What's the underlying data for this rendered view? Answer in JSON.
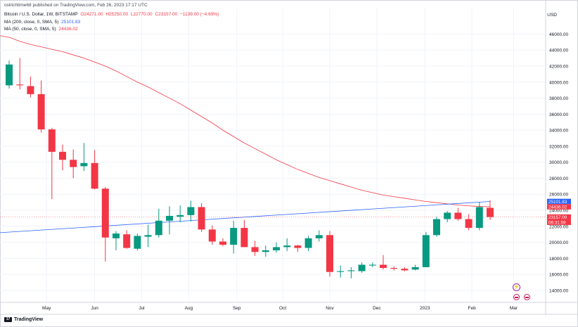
{
  "publisher": "ostrichtime68 published on TradingView.com, Feb 26, 2023 17:17 UTC",
  "legend": {
    "symbol": "Bitcoin / U.S. Dollar, 1W, BITSTAMP",
    "open": "O24271.00",
    "high": "H25250.00",
    "low": "L22770.00",
    "close": "C23157.00",
    "change": "−1139.00 (−4.69%)",
    "ma200_label": "MA (200, close, 0, SMA, 5)",
    "ma200_value": "25101.83",
    "ma50_label": "MA (50, close, 0, SMA, 5)",
    "ma50_value": "24436.02"
  },
  "currency": "USD",
  "footer": {
    "brand": "TradingView",
    "mark": "17"
  },
  "icons": {
    "event": "lightning-icon",
    "flags": [
      "us-flag-icon",
      "us-flag-icon"
    ]
  },
  "colors": {
    "up": "#089981",
    "down": "#f23645",
    "ma200": "#2962ff",
    "ma50": "#f23645",
    "grid": "#f0f3fa"
  },
  "chart_data": {
    "type": "candlestick",
    "yticks": [
      "14000.00",
      "16000.00",
      "18000.00",
      "20000.00",
      "22000.00",
      "24000.00",
      "26000.00",
      "28000.00",
      "30000.00",
      "32000.00",
      "34000.00",
      "36000.00",
      "38000.00",
      "40000.00",
      "42000.00",
      "44000.00",
      "46000.00"
    ],
    "ylim": [
      12500,
      49200
    ],
    "xticks": [
      "May",
      "Jun",
      "Jul",
      "Aug",
      "Sep",
      "Oct",
      "Nov",
      "Dec",
      "2023",
      "Feb",
      "Mar"
    ],
    "xtick_weeks": [
      3.5,
      8,
      12.4,
      16.8,
      21.3,
      25.6,
      30,
      34.4,
      38.9,
      43.3,
      47.2
    ],
    "candles": [
      {
        "o": 39600,
        "h": 42700,
        "l": 39200,
        "c": 42200
      },
      {
        "o": 39700,
        "h": 43000,
        "l": 39100,
        "c": 39600
      },
      {
        "o": 39500,
        "h": 40700,
        "l": 38100,
        "c": 38500
      },
      {
        "o": 38500,
        "h": 40200,
        "l": 33700,
        "c": 34100
      },
      {
        "o": 34100,
        "h": 34300,
        "l": 25400,
        "c": 31300
      },
      {
        "o": 31300,
        "h": 32200,
        "l": 29000,
        "c": 30300
      },
      {
        "o": 30300,
        "h": 31600,
        "l": 28000,
        "c": 29400
      },
      {
        "o": 29500,
        "h": 32400,
        "l": 28900,
        "c": 29900
      },
      {
        "o": 29900,
        "h": 31500,
        "l": 26600,
        "c": 26700
      },
      {
        "o": 26700,
        "h": 26900,
        "l": 17600,
        "c": 20600
      },
      {
        "o": 20500,
        "h": 21400,
        "l": 19000,
        "c": 21100
      },
      {
        "o": 21000,
        "h": 21500,
        "l": 19200,
        "c": 19300
      },
      {
        "o": 19200,
        "h": 21100,
        "l": 19000,
        "c": 20800
      },
      {
        "o": 20700,
        "h": 22200,
        "l": 19400,
        "c": 20900
      },
      {
        "o": 20900,
        "h": 24200,
        "l": 20600,
        "c": 22700
      },
      {
        "o": 22700,
        "h": 24500,
        "l": 21000,
        "c": 23300
      },
      {
        "o": 23200,
        "h": 24600,
        "l": 22500,
        "c": 23400
      },
      {
        "o": 23400,
        "h": 25200,
        "l": 22600,
        "c": 24400
      },
      {
        "o": 24400,
        "h": 24900,
        "l": 21300,
        "c": 21600
      },
      {
        "o": 21600,
        "h": 22100,
        "l": 19700,
        "c": 20100
      },
      {
        "o": 20100,
        "h": 20500,
        "l": 19500,
        "c": 19700
      },
      {
        "o": 19700,
        "h": 22700,
        "l": 18600,
        "c": 21800
      },
      {
        "o": 21800,
        "h": 22800,
        "l": 19700,
        "c": 19400
      },
      {
        "o": 19400,
        "h": 20200,
        "l": 18300,
        "c": 18800
      },
      {
        "o": 18800,
        "h": 19600,
        "l": 18200,
        "c": 19000
      },
      {
        "o": 19000,
        "h": 20000,
        "l": 18700,
        "c": 19400
      },
      {
        "o": 19400,
        "h": 20500,
        "l": 18900,
        "c": 19600
      },
      {
        "o": 19600,
        "h": 19700,
        "l": 18800,
        "c": 19300
      },
      {
        "o": 19300,
        "h": 20800,
        "l": 18900,
        "c": 20500
      },
      {
        "o": 20500,
        "h": 21500,
        "l": 20100,
        "c": 20900
      },
      {
        "o": 20900,
        "h": 21400,
        "l": 15700,
        "c": 16300
      },
      {
        "o": 16300,
        "h": 17100,
        "l": 15600,
        "c": 16400
      },
      {
        "o": 16400,
        "h": 16900,
        "l": 15500,
        "c": 16500
      },
      {
        "o": 16400,
        "h": 17500,
        "l": 16200,
        "c": 17200
      },
      {
        "o": 17100,
        "h": 17500,
        "l": 16900,
        "c": 17200
      },
      {
        "o": 17200,
        "h": 18400,
        "l": 16600,
        "c": 16800
      },
      {
        "o": 16800,
        "h": 17000,
        "l": 16500,
        "c": 16700
      },
      {
        "o": 16700,
        "h": 16900,
        "l": 16400,
        "c": 16500
      },
      {
        "o": 16600,
        "h": 17200,
        "l": 16500,
        "c": 16900
      },
      {
        "o": 16900,
        "h": 21300,
        "l": 16900,
        "c": 20900
      },
      {
        "o": 20900,
        "h": 23200,
        "l": 20700,
        "c": 22900
      },
      {
        "o": 22900,
        "h": 23900,
        "l": 22500,
        "c": 23700
      },
      {
        "o": 23700,
        "h": 24300,
        "l": 22700,
        "c": 22900
      },
      {
        "o": 22900,
        "h": 23500,
        "l": 21500,
        "c": 21800
      },
      {
        "o": 21800,
        "h": 25000,
        "l": 21500,
        "c": 24400
      },
      {
        "o": 24300,
        "h": 25250,
        "l": 22770,
        "c": 23157
      }
    ],
    "ma200": {
      "name": "MA (200, close, 0, SMA, 5)",
      "start": 21200,
      "end": 25101.83
    },
    "ma50": {
      "name": "MA (50, close, 0, SMA, 5)",
      "values": [
        45600,
        45100,
        44700,
        44400,
        44100,
        43800,
        43400,
        43000,
        42500,
        42000,
        41400,
        40700,
        40000,
        39400,
        38700,
        38000,
        37300,
        36500,
        35700,
        34900,
        34000,
        33200,
        32400,
        31700,
        31000,
        30300,
        29700,
        29100,
        28600,
        28100,
        27700,
        27300,
        26900,
        26500,
        26200,
        25900,
        25700,
        25500,
        25300,
        25100,
        24950,
        24800,
        24650,
        24550,
        24480,
        24436.02
      ]
    },
    "price_labels": [
      {
        "text": "25101.83",
        "value": 25101.83,
        "color": "#2962ff"
      },
      {
        "text": "24436.02",
        "value": 24436.02,
        "color": "#f23645"
      },
      {
        "text": "23157.00",
        "value": 23157,
        "color": "#f23645"
      },
      {
        "text": "06:31:59",
        "value": 22750,
        "color": "#f23645"
      }
    ],
    "last_price": 23157
  }
}
